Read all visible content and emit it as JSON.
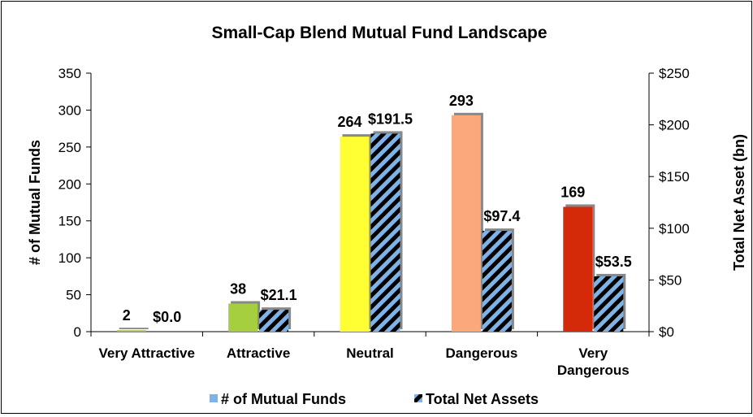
{
  "chart_data": {
    "type": "bar",
    "title": "Small-Cap Blend Mutual Fund Landscape",
    "categories": [
      [
        "Very Attractive"
      ],
      [
        "Attractive"
      ],
      [
        "Neutral"
      ],
      [
        "Dangerous"
      ],
      [
        "Very",
        "Dangerous"
      ]
    ],
    "series": [
      {
        "name": "# of Mutual Funds",
        "axis": "left",
        "values": [
          2,
          38,
          264,
          293,
          169
        ],
        "labels": [
          "2",
          "38",
          "264",
          "293",
          "169"
        ],
        "colors": [
          "#A9C94C",
          "#A5CF3E",
          "#FFFF33",
          "#FBA87C",
          "#D42A0A"
        ],
        "legend_color": "#7FB3E8"
      },
      {
        "name": "Total Net Assets",
        "axis": "right",
        "values": [
          0.0,
          21.1,
          191.5,
          97.4,
          53.5
        ],
        "labels": [
          "$0.0",
          "$21.1",
          "$191.5",
          "$97.4",
          "$53.5"
        ],
        "pattern_colors": [
          "#000000",
          "#7FB3E8"
        ]
      }
    ],
    "y_left": {
      "label": "# of Mutual Funds",
      "min": 0,
      "max": 350,
      "ticks": [
        0,
        50,
        100,
        150,
        200,
        250,
        300,
        350
      ],
      "tick_labels": [
        "0",
        "50",
        "100",
        "150",
        "200",
        "250",
        "300",
        "350"
      ]
    },
    "y_right": {
      "label": "Total Net Asset (bn)",
      "min": 0,
      "max": 250,
      "ticks": [
        0,
        50,
        100,
        150,
        200,
        250
      ],
      "tick_labels": [
        "$0",
        "$50",
        "$100",
        "$150",
        "$200",
        "$250"
      ]
    },
    "grid": false,
    "legend": "bottom"
  }
}
